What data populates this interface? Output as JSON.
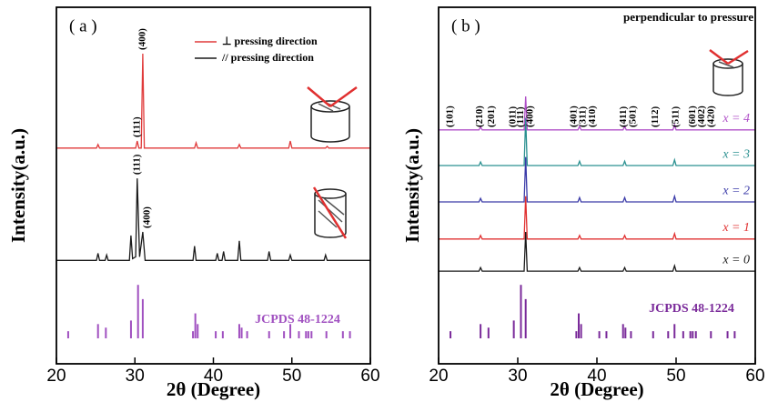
{
  "chart_data": [
    {
      "type": "line",
      "panel_label": "( a )",
      "x_label": "2θ (Degree)",
      "y_label": "Intensity(a.u.)",
      "xlim": [
        20,
        60
      ],
      "xticks": [
        20,
        30,
        40,
        50,
        60
      ],
      "ylim": [
        0,
        100
      ],
      "series": [
        {
          "name": "⊥ pressing direction",
          "color": "#e03a3a",
          "x": [
            20,
            25.1,
            25.3,
            25.5,
            30.1,
            30.3,
            30.5,
            30.8,
            31.0,
            31.2,
            37.6,
            37.8,
            38.0,
            43.1,
            43.3,
            43.5,
            49.6,
            49.8,
            50.0,
            54.3,
            54.5,
            54.7,
            60
          ],
          "values": [
            60.5,
            60.5,
            61.5,
            60.5,
            60.5,
            62.5,
            60.5,
            60.5,
            87,
            60.5,
            60.5,
            62,
            60.5,
            60.5,
            61.5,
            60.5,
            60.5,
            62.5,
            60.5,
            60.5,
            61,
            60.5,
            60.5
          ]
        },
        {
          "name": "// pressing direction",
          "color": "#1a1a1a",
          "x": [
            20,
            25.1,
            25.3,
            25.5,
            26.2,
            26.4,
            26.6,
            29.3,
            29.5,
            29.7,
            30.1,
            30.3,
            30.6,
            31.0,
            31.3,
            37.4,
            37.6,
            37.8,
            40.3,
            40.5,
            40.7,
            41.1,
            41.3,
            41.5,
            43.1,
            43.3,
            43.5,
            46.9,
            47.1,
            47.3,
            49.6,
            49.8,
            50.0,
            54.1,
            54.3,
            54.5,
            60
          ],
          "values": [
            29,
            29,
            31,
            29,
            29,
            30.5,
            29,
            29,
            36,
            29.5,
            30,
            52,
            30,
            37,
            29,
            29,
            33,
            29,
            29,
            31,
            29,
            29,
            31.5,
            29,
            29,
            34.5,
            29,
            29,
            31.5,
            29,
            29,
            30.5,
            29,
            29,
            30.5,
            29,
            29
          ]
        }
      ],
      "legend": "upper-center",
      "annotations": [
        {
          "text": "(400)",
          "x": 31.0,
          "y": 87
        },
        {
          "text": "(111)",
          "x": 30.3,
          "y": 62.5
        },
        {
          "text": "(111)",
          "x": 30.3,
          "y": 52
        },
        {
          "text": "(400)",
          "x": 31.6,
          "y": 37
        }
      ],
      "reference": {
        "name": "JCPDS 48-1224",
        "color": "#a050c0",
        "x": [
          21.5,
          25.3,
          26.3,
          29.5,
          30.4,
          31.0,
          37.4,
          37.7,
          38.0,
          40.3,
          41.2,
          43.3,
          43.6,
          44.3,
          47.1,
          49.0,
          49.8,
          50.9,
          51.8,
          52.1,
          52.5,
          54.4,
          56.5,
          57.4
        ],
        "values": [
          2,
          4,
          3,
          5,
          15,
          11,
          2,
          7,
          4,
          2,
          2,
          4,
          3,
          2,
          2,
          2,
          4,
          2,
          2,
          2,
          2,
          2,
          2,
          2
        ]
      }
    },
    {
      "type": "line",
      "panel_label": "( b )",
      "title": "perpendicular to pressure",
      "x_label": "2θ (Degree)",
      "y_label": "Intensity(a.u.)",
      "xlim": [
        20,
        60
      ],
      "xticks": [
        20,
        30,
        40,
        50,
        60
      ],
      "ylim": [
        0,
        100
      ],
      "series": [
        {
          "name": "x = 0",
          "color": "#1a1a1a",
          "x": [
            20,
            25.1,
            25.3,
            25.5,
            30.8,
            31.0,
            31.2,
            37.6,
            37.8,
            38.0,
            43.3,
            43.5,
            43.7,
            49.6,
            49.8,
            50.0,
            60
          ],
          "values": [
            26,
            26,
            27,
            26,
            26,
            37,
            26,
            26,
            27,
            26,
            26,
            27,
            26,
            26,
            27.5,
            26,
            26
          ]
        },
        {
          "name": "x = 1",
          "color": "#e03030",
          "x": [
            20,
            25.1,
            25.3,
            25.5,
            30.8,
            31.0,
            31.2,
            37.6,
            37.8,
            38.0,
            43.3,
            43.5,
            43.7,
            49.6,
            49.8,
            50.0,
            60
          ],
          "values": [
            35,
            35,
            36,
            35,
            35,
            47,
            35,
            35,
            36,
            35,
            35,
            36,
            35,
            35,
            36.5,
            35,
            35
          ]
        },
        {
          "name": "x = 2",
          "color": "#3a3aa8",
          "x": [
            20,
            25.1,
            25.3,
            25.5,
            30.8,
            31.0,
            31.2,
            37.6,
            37.8,
            38.0,
            43.3,
            43.5,
            43.7,
            49.6,
            49.8,
            50.0,
            60
          ],
          "values": [
            45.4,
            45.4,
            46.4,
            45.4,
            45.4,
            58,
            45.4,
            45.4,
            46.6,
            45.4,
            45.4,
            46.6,
            45.4,
            45.4,
            47,
            45.4,
            45.4
          ]
        },
        {
          "name": "x = 3",
          "color": "#2a9090",
          "x": [
            20,
            25.1,
            25.3,
            25.5,
            30.8,
            31.0,
            31.2,
            37.6,
            37.8,
            38.0,
            43.3,
            43.5,
            43.7,
            49.6,
            49.8,
            50.0,
            60
          ],
          "values": [
            55.6,
            55.6,
            56.6,
            55.6,
            55.6,
            69,
            55.6,
            55.6,
            56.8,
            55.6,
            55.6,
            56.8,
            55.6,
            55.6,
            57.2,
            55.6,
            55.6
          ]
        },
        {
          "name": "x = 4",
          "color": "#b050c8",
          "x": [
            20,
            25.1,
            25.3,
            25.5,
            30.8,
            31.0,
            31.2,
            37.6,
            37.8,
            38.0,
            43.3,
            43.5,
            43.7,
            49.6,
            49.8,
            50.0,
            60
          ],
          "values": [
            65.6,
            65.6,
            66.4,
            65.6,
            65.6,
            75,
            65.6,
            65.6,
            66.6,
            65.6,
            65.6,
            66.6,
            65.6,
            65.6,
            67,
            65.6,
            65.6
          ]
        }
      ],
      "peak_labels": [
        {
          "text": "(101)",
          "x": 21.5
        },
        {
          "text": "(210)",
          "x": 25.2
        },
        {
          "text": "(201)",
          "x": 26.7
        },
        {
          "text": "(011)",
          "x": 29.4
        },
        {
          "text": "(111)",
          "x": 30.4
        },
        {
          "text": "(400)",
          "x": 31.6
        },
        {
          "text": "(401)",
          "x": 37.1
        },
        {
          "text": "(311)",
          "x": 38.3
        },
        {
          "text": "(410)",
          "x": 39.5
        },
        {
          "text": "(411)",
          "x": 43.4
        },
        {
          "text": "(501)",
          "x": 44.6
        },
        {
          "text": "(112)",
          "x": 47.4
        },
        {
          "text": "(511)",
          "x": 50.0
        },
        {
          "text": "(601)",
          "x": 52.1
        },
        {
          "text": "(402)",
          "x": 53.3
        },
        {
          "text": "(420)",
          "x": 54.5
        }
      ],
      "reference": {
        "name": "JCPDS 48-1224",
        "color": "#7a2a9a",
        "x": [
          21.5,
          25.3,
          26.3,
          29.5,
          30.4,
          31.0,
          37.4,
          37.7,
          38.0,
          40.3,
          41.2,
          43.3,
          43.6,
          44.3,
          47.1,
          49.0,
          49.8,
          50.9,
          51.8,
          52.1,
          52.5,
          54.4,
          56.5,
          57.4
        ],
        "values": [
          2,
          4,
          3,
          5,
          15,
          11,
          2,
          7,
          4,
          2,
          2,
          4,
          3,
          2,
          2,
          2,
          4,
          2,
          2,
          2,
          2,
          2,
          2,
          2
        ]
      }
    }
  ]
}
